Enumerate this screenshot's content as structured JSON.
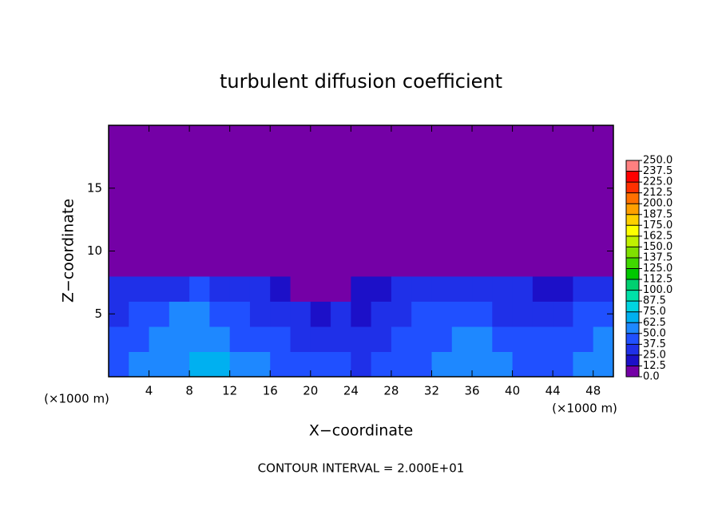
{
  "chart_data": {
    "type": "heatmap",
    "title": "turbulent diffusion coefficient",
    "xlabel": "X−coordinate",
    "ylabel": "Z−coordinate",
    "xunit": "(×1000 m)",
    "footer": "CONTOUR INTERVAL = 2.000E+01",
    "xlim": [
      0,
      50
    ],
    "ylim": [
      0,
      20
    ],
    "xticks": [
      4,
      8,
      12,
      16,
      20,
      24,
      28,
      32,
      36,
      40,
      44,
      48
    ],
    "yticks": [
      5,
      10,
      15
    ],
    "levels": [
      {
        "value": 0,
        "label": "0.0"
      },
      {
        "value": 12.5,
        "label": "12.5"
      },
      {
        "value": 25,
        "label": "25.0"
      },
      {
        "value": 37.5,
        "label": "37.5"
      },
      {
        "value": 50,
        "label": "50.0"
      },
      {
        "value": 62.5,
        "label": "62.5"
      },
      {
        "value": 75,
        "label": "75.0"
      },
      {
        "value": 87.5,
        "label": "87.5"
      },
      {
        "value": 100,
        "label": "100.0"
      },
      {
        "value": 112.5,
        "label": "112.5"
      },
      {
        "value": 125,
        "label": "125.0"
      },
      {
        "value": 137.5,
        "label": "137.5"
      },
      {
        "value": 150,
        "label": "150.0"
      },
      {
        "value": 162.5,
        "label": "162.5"
      },
      {
        "value": 175,
        "label": "175.0"
      },
      {
        "value": 187.5,
        "label": "187.5"
      },
      {
        "value": 200,
        "label": "200.0"
      },
      {
        "value": 212.5,
        "label": "212.5"
      },
      {
        "value": 225,
        "label": "225.0"
      },
      {
        "value": 237.5,
        "label": "237.5"
      },
      {
        "value": 250,
        "label": "250.0"
      }
    ],
    "colors": [
      "#7400a6",
      "#1c10c8",
      "#1f30e8",
      "#2050ff",
      "#1e88ff",
      "#00b0f0",
      "#00d4e0",
      "#00e0a8",
      "#00d070",
      "#00c800",
      "#40d800",
      "#80e000",
      "#c0f000",
      "#ffff00",
      "#ffd000",
      "#ffa000",
      "#ff7000",
      "#ff3000",
      "#ff0000",
      "#ff8080"
    ],
    "field": [
      [
        45,
        50,
        50,
        55,
        65,
        70,
        55,
        50,
        45,
        45,
        40,
        40,
        35,
        40,
        45,
        45,
        50,
        55,
        60,
        50,
        45,
        45,
        40,
        50,
        55
      ],
      [
        40,
        45,
        50,
        55,
        60,
        55,
        45,
        40,
        40,
        35,
        30,
        30,
        30,
        35,
        40,
        40,
        45,
        50,
        55,
        45,
        40,
        40,
        40,
        45,
        50
      ],
      [
        35,
        40,
        45,
        50,
        55,
        45,
        40,
        35,
        30,
        25,
        20,
        25,
        20,
        30,
        35,
        40,
        40,
        45,
        40,
        35,
        35,
        35,
        35,
        40,
        45
      ],
      [
        30,
        30,
        25,
        35,
        40,
        35,
        30,
        25,
        15,
        10,
        10,
        10,
        15,
        20,
        25,
        30,
        35,
        35,
        30,
        25,
        25,
        20,
        20,
        25,
        30
      ],
      [
        0,
        0,
        0,
        0,
        0,
        0,
        0,
        0,
        0,
        0,
        0,
        0,
        0,
        0,
        0,
        0,
        0,
        0,
        0,
        0,
        0,
        0,
        0,
        0,
        0
      ]
    ]
  }
}
